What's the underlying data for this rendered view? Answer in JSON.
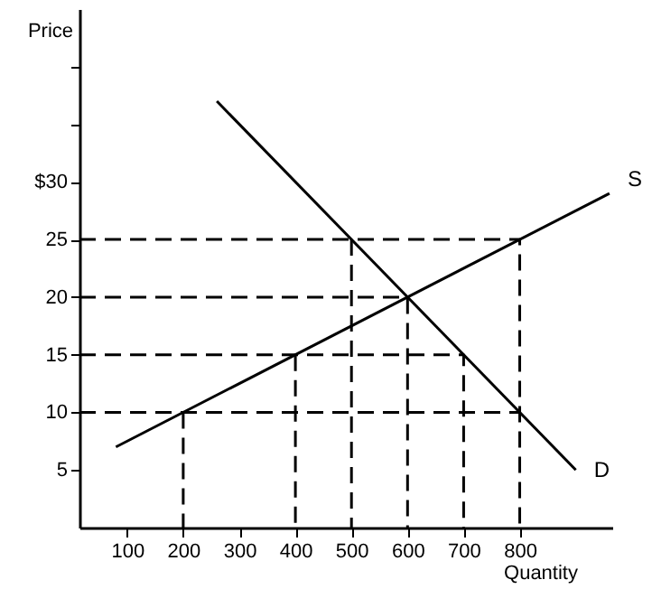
{
  "chart_data": {
    "type": "line",
    "xlabel": "Quantity",
    "ylabel": "Price",
    "xlim": [
      15,
      965
    ],
    "ylim": [
      0,
      45
    ],
    "xticks": [
      100,
      200,
      300,
      400,
      500,
      600,
      700,
      800
    ],
    "yticks": [
      5,
      10,
      15,
      20,
      25,
      {
        "value": 30,
        "label": "$30"
      },
      {
        "value": 35,
        "label": null
      },
      {
        "value": 40,
        "label": null
      }
    ],
    "grid": false,
    "marker": "none",
    "series": [
      {
        "name": "S",
        "color": "#000000",
        "line_style": "solid",
        "x": [
          80,
          960
        ],
        "values": [
          7,
          29
        ]
      },
      {
        "name": "D",
        "color": "#000000",
        "line_style": "solid",
        "x": [
          260,
          900
        ],
        "values": [
          37,
          5
        ]
      },
      {
        "color": "#000000",
        "line_style": "dashed",
        "x": [
          15,
          800,
          800
        ],
        "values": [
          25,
          25,
          0
        ]
      },
      {
        "color": "#000000",
        "line_style": "dashed",
        "x": [
          15,
          600,
          600
        ],
        "values": [
          20,
          20,
          0
        ]
      },
      {
        "color": "#000000",
        "line_style": "dashed",
        "x": [
          15,
          700,
          700
        ],
        "values": [
          15,
          15,
          0
        ]
      },
      {
        "color": "#000000",
        "line_style": "dashed",
        "x": [
          15,
          800
        ],
        "values": [
          10,
          10
        ]
      },
      {
        "color": "#000000",
        "line_style": "dashed",
        "x": [
          200,
          200
        ],
        "values": [
          10,
          0
        ]
      },
      {
        "color": "#000000",
        "line_style": "dashed",
        "x": [
          400,
          400
        ],
        "values": [
          15,
          0
        ]
      },
      {
        "color": "#000000",
        "line_style": "dashed",
        "x": [
          500,
          500
        ],
        "values": [
          25,
          0
        ]
      }
    ]
  }
}
